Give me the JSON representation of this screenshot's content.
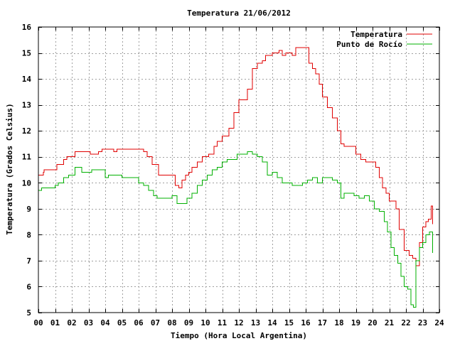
{
  "chart_data": {
    "type": "line",
    "title": "Temperatura 21/06/2012",
    "xlabel": "Tiempo (Hora Local Argentina)",
    "ylabel": "Temperatura (Grados Celsius)",
    "xlim": [
      0,
      24
    ],
    "ylim": [
      5,
      16
    ],
    "xticks": [
      "00",
      "01",
      "02",
      "03",
      "04",
      "05",
      "06",
      "07",
      "08",
      "09",
      "10",
      "11",
      "12",
      "13",
      "14",
      "15",
      "16",
      "17",
      "18",
      "19",
      "20",
      "21",
      "22",
      "23",
      "24"
    ],
    "yticks": [
      5,
      6,
      7,
      8,
      9,
      10,
      11,
      12,
      13,
      14,
      15,
      16
    ],
    "grid": true,
    "legend_position": "top-right",
    "series": [
      {
        "name": "Temperatura",
        "color": "#e00000",
        "x": [
          0,
          0.3,
          0.35,
          1.0,
          1.1,
          1.5,
          1.7,
          2.2,
          2.4,
          3.0,
          3.1,
          3.6,
          3.8,
          4.5,
          4.7,
          5.5,
          6.0,
          6.3,
          6.5,
          6.8,
          7.2,
          7.5,
          8.0,
          8.2,
          8.4,
          8.6,
          8.8,
          9.0,
          9.2,
          9.5,
          9.8,
          10.0,
          10.2,
          10.5,
          10.7,
          11.0,
          11.2,
          11.4,
          11.7,
          12.0,
          12.2,
          12.5,
          12.8,
          13.1,
          13.4,
          13.6,
          14.0,
          14.4,
          14.6,
          14.8,
          15.0,
          15.2,
          15.4,
          15.6,
          15.8,
          16.0,
          16.2,
          16.4,
          16.6,
          16.8,
          17.0,
          17.3,
          17.6,
          17.9,
          18.1,
          18.3,
          18.6,
          19.0,
          19.3,
          19.6,
          19.9,
          20.2,
          20.4,
          20.6,
          20.8,
          21.0,
          21.2,
          21.4,
          21.6,
          21.9,
          22.2,
          22.4,
          22.6,
          22.8,
          23.0,
          23.2,
          23.35,
          23.5,
          23.6
        ],
        "y": [
          10.3,
          10.4,
          10.5,
          10.5,
          10.7,
          10.9,
          11.0,
          11.2,
          11.2,
          11.2,
          11.1,
          11.2,
          11.3,
          11.2,
          11.3,
          11.3,
          11.3,
          11.2,
          11.0,
          10.7,
          10.3,
          10.3,
          10.3,
          9.9,
          9.8,
          10.1,
          10.3,
          10.4,
          10.6,
          10.8,
          11.0,
          11.0,
          11.1,
          11.4,
          11.6,
          11.8,
          11.8,
          12.1,
          12.7,
          13.2,
          13.2,
          13.6,
          14.4,
          14.6,
          14.7,
          14.9,
          15.0,
          15.1,
          14.9,
          15.0,
          15.0,
          14.9,
          15.2,
          15.2,
          15.2,
          15.2,
          14.6,
          14.4,
          14.2,
          13.8,
          13.3,
          12.9,
          12.5,
          12.0,
          11.5,
          11.4,
          11.4,
          11.1,
          10.9,
          10.8,
          10.8,
          10.6,
          10.2,
          9.8,
          9.6,
          9.3,
          9.3,
          9.0,
          8.2,
          7.4,
          7.2,
          7.1,
          6.8,
          7.7,
          8.3,
          8.5,
          8.6,
          9.1,
          8.4
        ]
      },
      {
        "name": "Punto de Rocío",
        "color": "#00b000",
        "x": [
          0,
          0.2,
          0.5,
          1.0,
          1.2,
          1.5,
          1.8,
          2.2,
          2.6,
          3.0,
          3.2,
          3.6,
          4.0,
          4.2,
          4.6,
          5.0,
          5.5,
          6.0,
          6.3,
          6.6,
          6.9,
          7.1,
          7.3,
          7.6,
          8.0,
          8.3,
          8.6,
          8.9,
          9.2,
          9.5,
          9.8,
          10.1,
          10.4,
          10.7,
          11.0,
          11.3,
          11.6,
          11.9,
          12.2,
          12.5,
          12.8,
          13.1,
          13.4,
          13.7,
          14.0,
          14.3,
          14.6,
          14.9,
          15.2,
          15.5,
          15.8,
          16.1,
          16.4,
          16.7,
          17.0,
          17.3,
          17.6,
          17.9,
          18.1,
          18.3,
          18.6,
          18.9,
          19.2,
          19.5,
          19.8,
          20.1,
          20.4,
          20.7,
          20.9,
          21.1,
          21.3,
          21.5,
          21.7,
          21.9,
          22.1,
          22.3,
          22.45,
          22.6,
          22.8,
          23.0,
          23.2,
          23.4,
          23.6
        ],
        "y": [
          9.7,
          9.8,
          9.8,
          9.9,
          10.0,
          10.2,
          10.3,
          10.6,
          10.4,
          10.4,
          10.5,
          10.5,
          10.2,
          10.3,
          10.3,
          10.2,
          10.2,
          10.0,
          9.9,
          9.7,
          9.5,
          9.4,
          9.4,
          9.4,
          9.5,
          9.2,
          9.2,
          9.4,
          9.6,
          9.9,
          10.1,
          10.3,
          10.5,
          10.6,
          10.8,
          10.9,
          10.9,
          11.1,
          11.1,
          11.2,
          11.1,
          11.0,
          10.8,
          10.3,
          10.4,
          10.2,
          10.0,
          10.0,
          9.9,
          9.9,
          10.0,
          10.1,
          10.2,
          10.0,
          10.2,
          10.2,
          10.1,
          10.0,
          9.4,
          9.6,
          9.6,
          9.5,
          9.4,
          9.5,
          9.3,
          9.0,
          8.9,
          8.5,
          8.1,
          7.5,
          7.2,
          6.9,
          6.4,
          6.0,
          5.9,
          5.3,
          5.2,
          7.0,
          7.5,
          7.7,
          8.0,
          8.1,
          7.3
        ]
      }
    ]
  }
}
